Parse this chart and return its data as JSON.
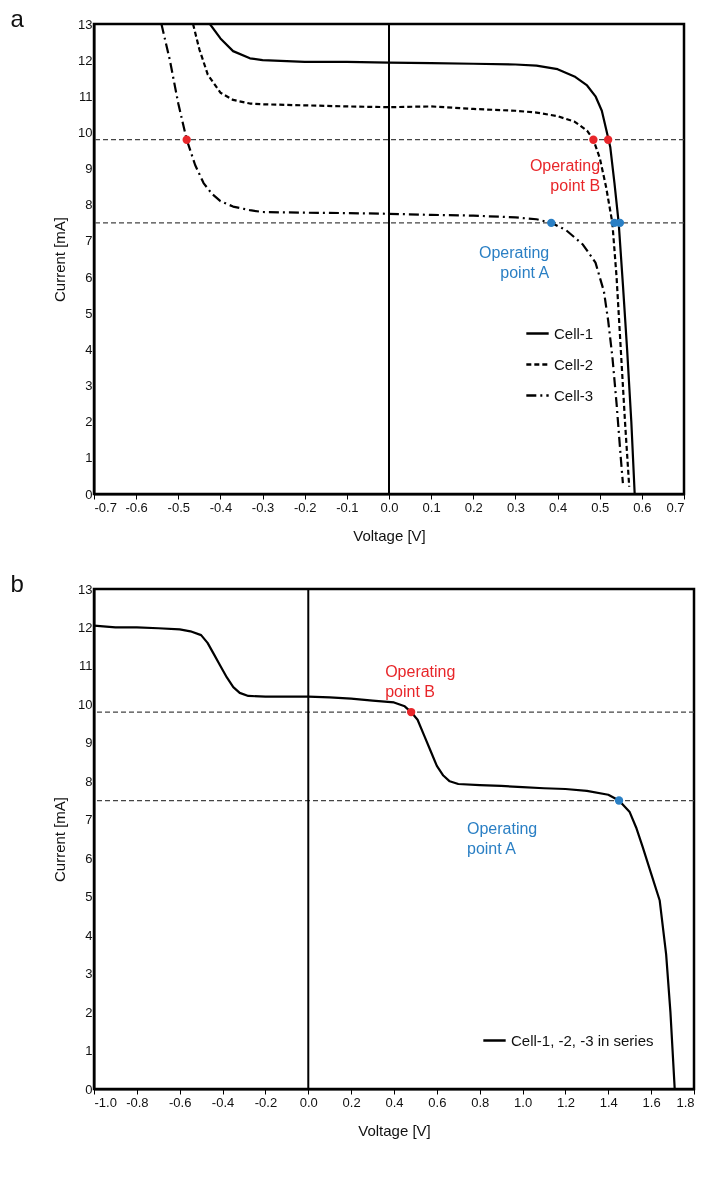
{
  "chart_data": [
    {
      "type": "line",
      "title": "a",
      "xlabel": "Voltage [V]",
      "ylabel": "Current [mA]",
      "xlim": [
        -0.7,
        0.7
      ],
      "ylim": [
        0,
        13
      ],
      "xticks": [
        -0.7,
        -0.6,
        -0.5,
        -0.4,
        -0.3,
        -0.2,
        -0.1,
        {
          "value": 0,
          "label": "0.0"
        },
        0.1,
        0.2,
        0.3,
        0.4,
        0.5,
        0.6,
        0.7
      ],
      "yticks": [
        0,
        1,
        2,
        3,
        4,
        5,
        6,
        7,
        8,
        9,
        10,
        11,
        12,
        13
      ],
      "grid": false,
      "legend": "bottom right",
      "ref_lines": [
        {
          "axis": "y",
          "value": 9.8,
          "line_style": "dashed",
          "color": "#444444"
        },
        {
          "axis": "y",
          "value": 7.5,
          "line_style": "dashed",
          "color": "#444444"
        },
        {
          "axis": "x",
          "value": 0,
          "line_style": "solid",
          "color": "#000000"
        }
      ],
      "series": [
        {
          "name": "Cell-1",
          "color": "#000000",
          "line_style": "solid",
          "x": [
            -0.425,
            -0.4,
            -0.37,
            -0.33,
            -0.3,
            -0.2,
            -0.1,
            0,
            0.1,
            0.2,
            0.3,
            0.35,
            0.4,
            0.44,
            0.47,
            0.49,
            0.505,
            0.515,
            0.525,
            0.535,
            0.545,
            0.555,
            0.565,
            0.575,
            0.583
          ],
          "values": [
            13,
            12.6,
            12.25,
            12.05,
            12.0,
            11.95,
            11.95,
            11.93,
            11.92,
            11.9,
            11.88,
            11.85,
            11.75,
            11.55,
            11.3,
            11.0,
            10.6,
            10.1,
            9.6,
            8.6,
            7.5,
            5.8,
            4.0,
            2.0,
            0
          ]
        },
        {
          "name": "Cell-2",
          "color": "#000000",
          "line_style": "dashed",
          "x": [
            -0.465,
            -0.45,
            -0.43,
            -0.4,
            -0.37,
            -0.33,
            -0.3,
            -0.2,
            -0.1,
            0,
            0.1,
            0.2,
            0.3,
            0.35,
            0.4,
            0.44,
            0.47,
            0.485,
            0.5,
            0.515,
            0.53,
            0.54,
            0.55,
            0.56,
            0.57
          ],
          "values": [
            13,
            12.3,
            11.6,
            11.1,
            10.9,
            10.8,
            10.78,
            10.75,
            10.72,
            10.7,
            10.72,
            10.65,
            10.6,
            10.55,
            10.45,
            10.3,
            10.05,
            9.8,
            9.3,
            8.5,
            7.5,
            6.0,
            4.0,
            2.0,
            0.2
          ]
        },
        {
          "name": "Cell-3",
          "color": "#000000",
          "line_style": "dashdot",
          "x": [
            -0.54,
            -0.52,
            -0.5,
            -0.48,
            -0.46,
            -0.44,
            -0.42,
            -0.4,
            -0.37,
            -0.33,
            -0.3,
            -0.2,
            -0.1,
            0,
            0.1,
            0.2,
            0.3,
            0.35,
            0.385,
            0.42,
            0.46,
            0.49,
            0.51,
            0.52,
            0.53,
            0.54,
            0.55,
            0.555
          ],
          "values": [
            13,
            12,
            10.8,
            9.8,
            9.1,
            8.6,
            8.3,
            8.1,
            7.95,
            7.85,
            7.8,
            7.78,
            7.77,
            7.75,
            7.72,
            7.7,
            7.65,
            7.6,
            7.5,
            7.3,
            6.9,
            6.4,
            5.6,
            4.8,
            3.8,
            2.5,
            1.0,
            0.3
          ]
        },
        {
          "name": "Operating point B",
          "type": "scatter",
          "marker": "circle",
          "color": "#e8262a",
          "x": [
            -0.48,
            0.485,
            0.52
          ],
          "values": [
            9.8,
            9.8,
            9.8
          ]
        },
        {
          "name": "Operating point A",
          "type": "scatter",
          "marker": "circle",
          "color": "#2a7fc4",
          "x": [
            0.385,
            0.535,
            0.548
          ],
          "values": [
            7.5,
            7.5,
            7.5
          ]
        }
      ]
    },
    {
      "type": "line",
      "title": "b",
      "xlabel": "Voltage [V]",
      "ylabel": "Current [mA]",
      "xlim": [
        -1.0,
        1.8
      ],
      "ylim": [
        0,
        13
      ],
      "xticks": [
        {
          "value": -1,
          "label": "-1.0"
        },
        -0.8,
        -0.6,
        -0.4,
        -0.2,
        {
          "value": 0,
          "label": "0.0"
        },
        0.2,
        0.4,
        0.6,
        0.8,
        {
          "value": 1,
          "label": "1.0"
        },
        1.2,
        1.4,
        1.6,
        1.8
      ],
      "yticks": [
        0,
        1,
        2,
        3,
        4,
        5,
        6,
        7,
        8,
        9,
        10,
        11,
        12,
        13
      ],
      "grid": false,
      "legend": "bottom right",
      "ref_lines": [
        {
          "axis": "y",
          "value": 9.8,
          "line_style": "dashed",
          "color": "#444444"
        },
        {
          "axis": "y",
          "value": 7.5,
          "line_style": "dashed",
          "color": "#444444"
        },
        {
          "axis": "x",
          "value": 0,
          "line_style": "solid",
          "color": "#000000"
        }
      ],
      "series": [
        {
          "name": "Cell-1, -2, -3 in series",
          "color": "#000000",
          "line_style": "solid",
          "x": [
            -1.0,
            -0.9,
            -0.8,
            -0.7,
            -0.6,
            -0.55,
            -0.5,
            -0.47,
            -0.44,
            -0.41,
            -0.38,
            -0.35,
            -0.32,
            -0.28,
            -0.2,
            -0.1,
            0,
            0.1,
            0.2,
            0.3,
            0.4,
            0.45,
            0.48,
            0.51,
            0.54,
            0.57,
            0.6,
            0.63,
            0.66,
            0.7,
            0.8,
            0.9,
            1.0,
            1.1,
            1.2,
            1.3,
            1.4,
            1.45,
            1.5,
            1.53,
            1.56,
            1.6,
            1.64,
            1.67,
            1.69,
            1.7,
            1.71
          ],
          "values": [
            12.05,
            12.0,
            12.0,
            11.98,
            11.95,
            11.9,
            11.8,
            11.6,
            11.3,
            11.0,
            10.7,
            10.45,
            10.3,
            10.22,
            10.2,
            10.2,
            10.2,
            10.18,
            10.15,
            10.1,
            10.05,
            9.95,
            9.8,
            9.6,
            9.2,
            8.8,
            8.4,
            8.15,
            8.0,
            7.93,
            7.9,
            7.88,
            7.85,
            7.82,
            7.8,
            7.75,
            7.65,
            7.5,
            7.2,
            6.8,
            6.3,
            5.6,
            4.9,
            3.5,
            2.0,
            1.0,
            0
          ]
        },
        {
          "name": "Operating point B",
          "type": "scatter",
          "marker": "circle",
          "color": "#e8262a",
          "x": [
            0.48
          ],
          "values": [
            9.8
          ]
        },
        {
          "name": "Operating point A",
          "type": "scatter",
          "marker": "circle",
          "color": "#2a7fc4",
          "x": [
            1.45
          ],
          "values": [
            7.5
          ]
        }
      ]
    }
  ]
}
